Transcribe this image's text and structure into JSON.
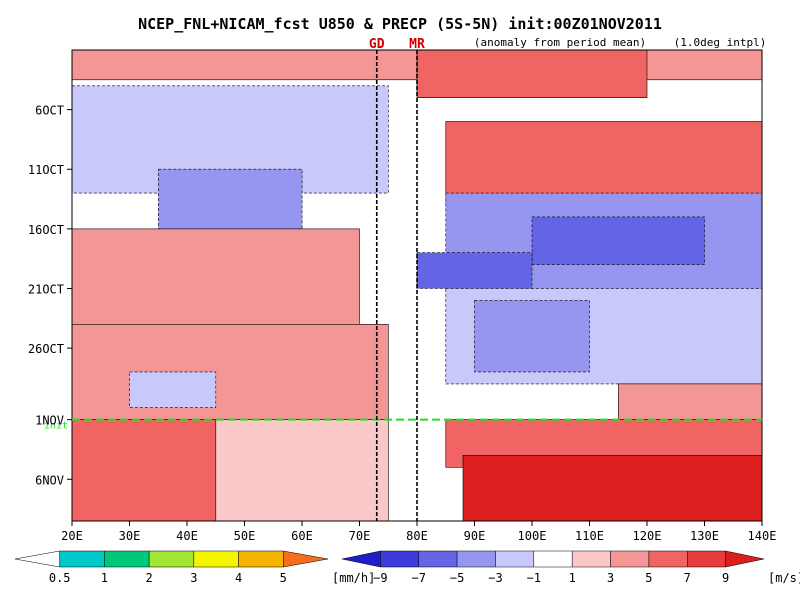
{
  "chart_data": {
    "type": "heatmap",
    "title": "NCEP_FNL+NICAM_fcst U850 & PRECP (5S-5N) init:00Z01NOV2011",
    "subtitle_left": "(anomaly from period mean)",
    "subtitle_right": "(1.0deg intpl)",
    "x_axis": {
      "range": [
        20,
        140
      ],
      "ticks": [
        20,
        30,
        40,
        50,
        60,
        70,
        80,
        90,
        100,
        110,
        120,
        130,
        140
      ],
      "tick_labels": [
        "20E",
        "30E",
        "40E",
        "50E",
        "60E",
        "70E",
        "80E",
        "90E",
        "100E",
        "110E",
        "120E",
        "130E",
        "140E"
      ]
    },
    "y_axis": {
      "tick_labels": [
        "6OCT",
        "11OCT",
        "16OCT",
        "21OCT",
        "26OCT",
        "1NOV",
        "6NOV"
      ],
      "tick_days_from_1OCT": [
        5,
        10,
        15,
        20,
        25,
        31,
        36
      ],
      "range_days_from_1OCT": [
        0,
        39.5
      ],
      "direction": "time increases downward"
    },
    "vertical_markers": [
      {
        "label": "GD",
        "lon": 73
      },
      {
        "label": "MR",
        "lon": 80
      }
    ],
    "init_line": {
      "date": "1NOV",
      "label": "init",
      "color": "#22dd22"
    },
    "u850_colorbar": {
      "unit": "[m/s]",
      "levels": [
        -9,
        -7,
        -5,
        -3,
        -1,
        1,
        3,
        5,
        7,
        9
      ],
      "colors": [
        "#1e1ec8",
        "#3c3cdc",
        "#6464e6",
        "#9696f0",
        "#c8c8fa",
        "#ffffff",
        "#fac8c8",
        "#f59696",
        "#f06464",
        "#e63c3c",
        "#dc1e1e"
      ]
    },
    "precip_colorbar": {
      "unit": "[mm/h]",
      "levels": [
        0.5,
        1,
        2,
        3,
        4,
        5
      ],
      "colors": [
        "#ffffff",
        "#00c8c8",
        "#00c87a",
        "#a0e632",
        "#f5f500",
        "#f5b400",
        "#f56e1e"
      ]
    },
    "regions": [
      {
        "lon": [
          20,
          140
        ],
        "days": [
          0,
          2.5
        ],
        "u_anom": 3
      },
      {
        "lon": [
          80,
          120
        ],
        "days": [
          0,
          4
        ],
        "u_anom": 6
      },
      {
        "lon": [
          20,
          75
        ],
        "days": [
          3,
          12
        ],
        "u_anom": -3
      },
      {
        "lon": [
          85,
          140
        ],
        "days": [
          6,
          13
        ],
        "u_anom": 5
      },
      {
        "lon": [
          35,
          60
        ],
        "days": [
          10,
          15
        ],
        "u_anom": -5
      },
      {
        "lon": [
          85,
          140
        ],
        "days": [
          12,
          20
        ],
        "u_anom": -4
      },
      {
        "lon": [
          100,
          130
        ],
        "days": [
          14,
          18
        ],
        "u_anom": -6
      },
      {
        "lon": [
          20,
          70
        ],
        "days": [
          15,
          23
        ],
        "u_anom": 3
      },
      {
        "lon": [
          80,
          100
        ],
        "days": [
          17,
          20
        ],
        "u_anom": -7
      },
      {
        "lon": [
          85,
          140
        ],
        "days": [
          20,
          28
        ],
        "u_anom": -3
      },
      {
        "lon": [
          90,
          110
        ],
        "days": [
          21,
          27
        ],
        "u_anom": -5
      },
      {
        "lon": [
          20,
          75
        ],
        "days": [
          23,
          31
        ],
        "u_anom": 3
      },
      {
        "lon": [
          30,
          45
        ],
        "days": [
          27,
          30
        ],
        "u_anom": -3
      },
      {
        "lon": [
          115,
          140
        ],
        "days": [
          28,
          31
        ],
        "u_anom": 3
      },
      {
        "lon": [
          20,
          45
        ],
        "days": [
          31,
          39.5
        ],
        "u_anom": 5
      },
      {
        "lon": [
          45,
          75
        ],
        "days": [
          31,
          39.5
        ],
        "u_anom": 2
      },
      {
        "lon": [
          85,
          140
        ],
        "days": [
          31,
          35
        ],
        "u_anom": 5
      },
      {
        "lon": [
          88,
          140
        ],
        "days": [
          34,
          39.5
        ],
        "u_anom": 9
      }
    ]
  }
}
